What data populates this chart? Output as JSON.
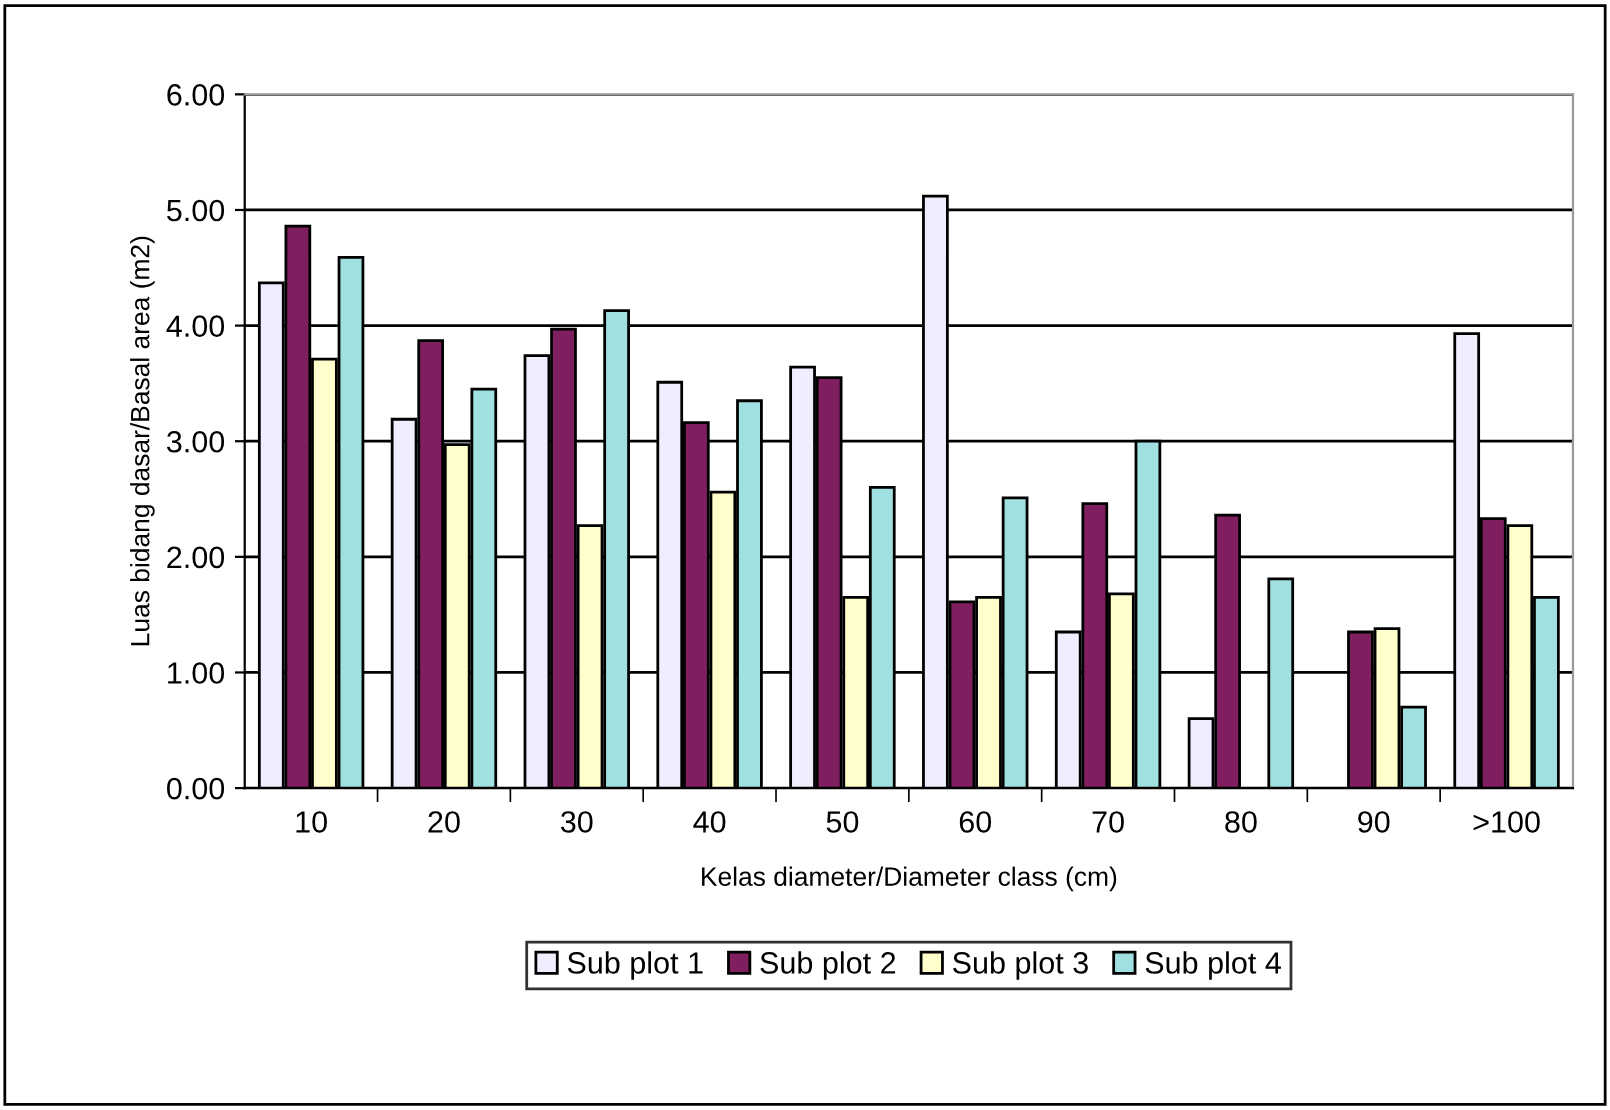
{
  "chart_data": {
    "type": "bar",
    "xlabel": "Kelas diameter/Diameter class (cm)",
    "ylabel": "Luas bidang dasar/Basal area (m2)",
    "categories": [
      "10",
      "20",
      "30",
      "40",
      "50",
      "60",
      "70",
      "80",
      "90",
      ">100"
    ],
    "series": [
      {
        "name": "Sub plot 1",
        "color": "#eeeeff",
        "values": [
          4.37,
          3.19,
          3.74,
          3.51,
          3.64,
          5.12,
          1.35,
          0.6,
          null,
          3.93
        ]
      },
      {
        "name": "Sub plot 2",
        "color": "#7f1f5f",
        "values": [
          4.86,
          3.87,
          3.97,
          3.16,
          3.55,
          1.61,
          2.46,
          2.36,
          1.35,
          2.33
        ]
      },
      {
        "name": "Sub plot 3",
        "color": "#ffffcc",
        "values": [
          3.71,
          2.97,
          2.27,
          2.56,
          1.65,
          1.65,
          1.68,
          null,
          1.38,
          2.27
        ]
      },
      {
        "name": "Sub plot 4",
        "color": "#a0e0e0",
        "values": [
          4.59,
          3.45,
          4.13,
          3.35,
          2.6,
          2.51,
          3.0,
          1.81,
          0.7,
          1.65
        ]
      }
    ],
    "ylim": [
      0,
      6
    ],
    "yticks": [
      {
        "value": 0,
        "label": "0.00"
      },
      {
        "value": 1,
        "label": "1.00"
      },
      {
        "value": 2,
        "label": "2.00"
      },
      {
        "value": 3,
        "label": "3.00"
      },
      {
        "value": 4,
        "label": "4.00"
      },
      {
        "value": 5,
        "label": "5.00"
      },
      {
        "value": 6,
        "label": "6.00"
      }
    ],
    "grid": "y",
    "legend": "bottom"
  }
}
